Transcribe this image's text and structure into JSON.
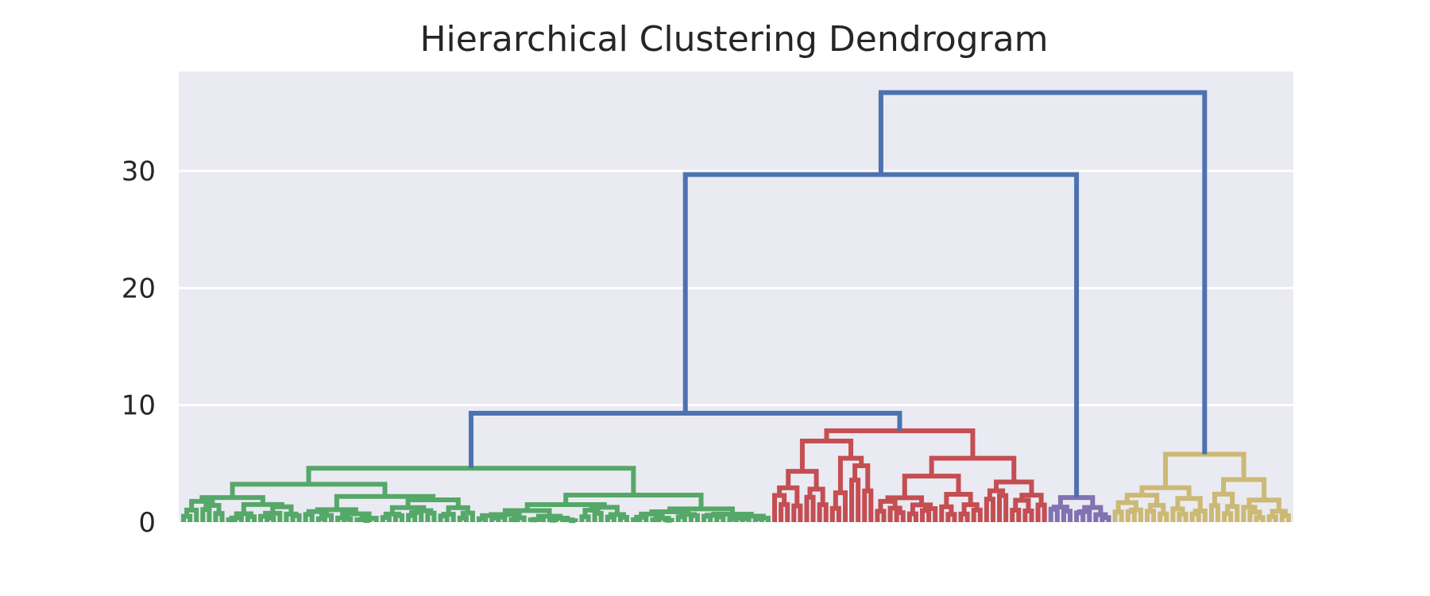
{
  "chart_data": {
    "type": "dendrogram",
    "title": "Hierarchical Clustering Dendrogram",
    "xlabel": "",
    "ylabel": "",
    "ylim": [
      0,
      38.5
    ],
    "yticks": [
      0,
      10,
      20,
      30
    ],
    "grid": true,
    "colors": {
      "background": "#eaeaf2",
      "link_above_threshold": "#4c72b0",
      "cluster_1": "#55a868",
      "cluster_2": "#c44e52",
      "cluster_3": "#8172b2",
      "cluster_4": "#ccb974"
    },
    "clusters": [
      {
        "color": "cluster_1",
        "leaf_count": 92,
        "height": 4.6
      },
      {
        "color": "cluster_2",
        "leaf_count": 43,
        "height": 7.8
      },
      {
        "color": "cluster_3",
        "leaf_count": 10,
        "height": 2.1
      },
      {
        "color": "cluster_4",
        "leaf_count": 28,
        "height": 5.8
      }
    ],
    "top_merges": [
      {
        "left": 1,
        "right": 2,
        "height": 9.3
      },
      {
        "left": "merge_1",
        "right": 3,
        "height": 29.7
      },
      {
        "left": "merge_2",
        "right": 4,
        "height": 36.7
      }
    ]
  }
}
